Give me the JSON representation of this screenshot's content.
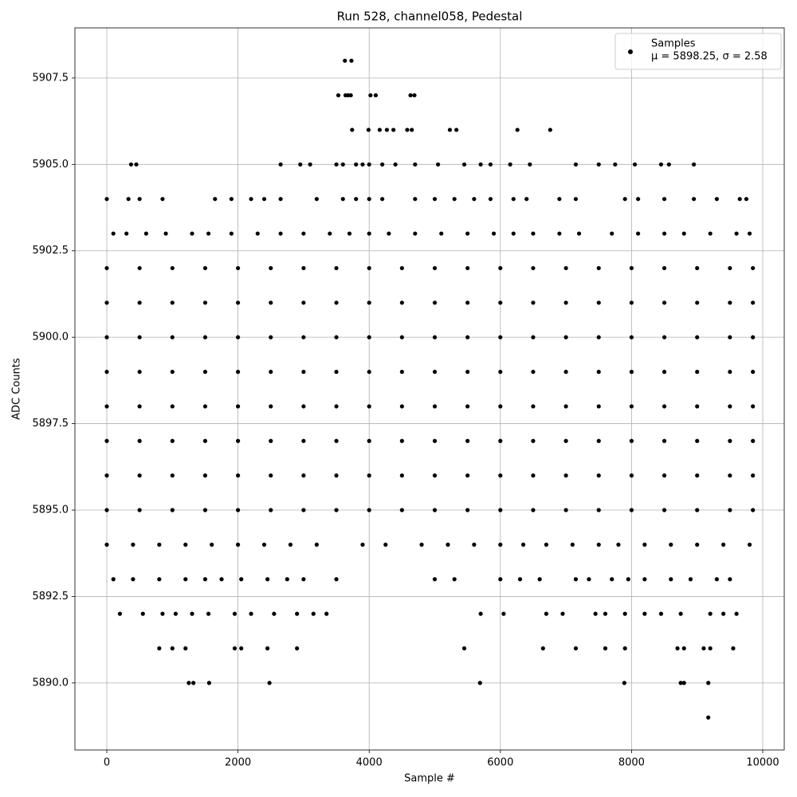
{
  "chart_data": {
    "type": "scatter",
    "title": "Run 528, channel058, Pedestal",
    "x_label": "Sample #",
    "y_label": "ADC Counts",
    "annotation": "μ = 5898.25, σ = 2.58",
    "grid": true,
    "legend": "upper right",
    "xlim": [
      -486,
      10328
    ],
    "ylim": [
      5888.06,
      5908.95
    ],
    "xticks": [
      0,
      2000,
      4000,
      6000,
      8000,
      10000
    ],
    "yticks": [
      {
        "value": 5890,
        "label": "5890.0"
      },
      {
        "value": 5892.5,
        "label": "5892.5"
      },
      {
        "value": 5895,
        "label": "5895.0"
      },
      {
        "value": 5897.5,
        "label": "5897.5"
      },
      {
        "value": 5900,
        "label": "5900.0"
      },
      {
        "value": 5902.5,
        "label": "5902.5"
      },
      {
        "value": 5905,
        "label": "5905.0"
      },
      {
        "value": 5907.5,
        "label": "5907.5"
      }
    ],
    "x": [
      3630,
      3730,
      3530,
      3640,
      3680,
      3720,
      4020,
      4100,
      4630,
      4690,
      3740,
      3990,
      4160,
      4270,
      4370,
      4580,
      4650,
      5230,
      5330,
      6260,
      6760,
      370,
      450,
      2650,
      2950,
      3100,
      3500,
      3600,
      3800,
      3900,
      4000,
      4200,
      4400,
      4700,
      5050,
      5450,
      5700,
      5850,
      6150,
      6450,
      7150,
      7500,
      7750,
      8050,
      8450,
      8570,
      8950,
      0,
      330,
      500,
      850,
      1650,
      1900,
      2200,
      2400,
      2650,
      3200,
      3600,
      3800,
      4000,
      4200,
      4700,
      5000,
      5300,
      5600,
      5850,
      6200,
      6400,
      6900,
      7150,
      7900,
      8100,
      8500,
      8950,
      9300,
      9650,
      9750,
      100,
      300,
      600,
      900,
      1300,
      1550,
      1900,
      2300,
      2650,
      3000,
      3400,
      3700,
      4000,
      4300,
      4700,
      5100,
      5500,
      5900,
      6200,
      6500,
      6900,
      7200,
      7700,
      8100,
      8500,
      8800,
      9200,
      9600,
      9800,
      0,
      500,
      1000,
      1500,
      2000,
      2500,
      3000,
      3500,
      4000,
      4500,
      5000,
      5500,
      6000,
      6500,
      7000,
      7500,
      8000,
      8500,
      9000,
      9500,
      9850,
      0,
      500,
      1000,
      1500,
      2000,
      2500,
      3000,
      3500,
      4000,
      4500,
      5000,
      5500,
      6000,
      6500,
      7000,
      7500,
      8000,
      8500,
      9000,
      9500,
      9850,
      0,
      500,
      1000,
      1500,
      2000,
      2500,
      3000,
      3500,
      4000,
      4500,
      5000,
      5500,
      6000,
      6500,
      7000,
      7500,
      8000,
      8500,
      9000,
      9500,
      9850,
      0,
      500,
      1000,
      1500,
      2000,
      2500,
      3000,
      3500,
      4000,
      4500,
      5000,
      5500,
      6000,
      6500,
      7000,
      7500,
      8000,
      8500,
      9000,
      9500,
      9850,
      0,
      500,
      1000,
      1500,
      2000,
      2500,
      3000,
      3500,
      4000,
      4500,
      5000,
      5500,
      6000,
      6500,
      7000,
      7500,
      8000,
      8500,
      9000,
      9500,
      9850,
      0,
      500,
      1000,
      1500,
      2000,
      2500,
      3000,
      3500,
      4000,
      4500,
      5000,
      5500,
      6000,
      6500,
      7000,
      7500,
      8000,
      8500,
      9000,
      9500,
      9850,
      0,
      500,
      1000,
      1500,
      2000,
      2500,
      3000,
      3500,
      4000,
      4500,
      5000,
      5500,
      6000,
      6500,
      7000,
      7500,
      8000,
      8500,
      9000,
      9500,
      9850,
      0,
      500,
      1000,
      1500,
      2000,
      2500,
      3000,
      3500,
      4000,
      4500,
      5000,
      5500,
      6000,
      6500,
      7000,
      7500,
      8000,
      8500,
      9000,
      9500,
      9850,
      0,
      400,
      800,
      1200,
      1600,
      2000,
      2400,
      2800,
      3200,
      3900,
      4250,
      4800,
      5200,
      5600,
      6000,
      6350,
      6700,
      7100,
      7500,
      7800,
      8200,
      8600,
      9000,
      9400,
      9800,
      100,
      400,
      800,
      1200,
      1500,
      1750,
      2050,
      2450,
      2750,
      3000,
      3500,
      5000,
      5300,
      6000,
      6300,
      6600,
      7150,
      7350,
      7700,
      7950,
      8200,
      8600,
      8900,
      9300,
      9500,
      200,
      550,
      850,
      1050,
      1300,
      1550,
      1950,
      2200,
      2550,
      2900,
      3150,
      3350,
      5700,
      6050,
      6700,
      6950,
      7450,
      7600,
      7900,
      8200,
      8450,
      8750,
      9200,
      9400,
      9600,
      800,
      1000,
      1200,
      1950,
      2050,
      2450,
      2900,
      5450,
      6650,
      7150,
      7600,
      7900,
      8700,
      8800,
      9100,
      9200,
      9550,
      1250,
      1320,
      1560,
      2480,
      5690,
      7890,
      8750,
      8800,
      9170,
      9170
    ],
    "series": [
      {
        "name": "Samples",
        "color": "#000000",
        "values": [
          5908,
          5908,
          5907,
          5907,
          5907,
          5907,
          5907,
          5907,
          5907,
          5907,
          5906,
          5906,
          5906,
          5906,
          5906,
          5906,
          5906,
          5906,
          5906,
          5906,
          5906,
          5905,
          5905,
          5905,
          5905,
          5905,
          5905,
          5905,
          5905,
          5905,
          5905,
          5905,
          5905,
          5905,
          5905,
          5905,
          5905,
          5905,
          5905,
          5905,
          5905,
          5905,
          5905,
          5905,
          5905,
          5905,
          5905,
          5904,
          5904,
          5904,
          5904,
          5904,
          5904,
          5904,
          5904,
          5904,
          5904,
          5904,
          5904,
          5904,
          5904,
          5904,
          5904,
          5904,
          5904,
          5904,
          5904,
          5904,
          5904,
          5904,
          5904,
          5904,
          5904,
          5904,
          5904,
          5904,
          5904,
          5903,
          5903,
          5903,
          5903,
          5903,
          5903,
          5903,
          5903,
          5903,
          5903,
          5903,
          5903,
          5903,
          5903,
          5903,
          5903,
          5903,
          5903,
          5903,
          5903,
          5903,
          5903,
          5903,
          5903,
          5903,
          5903,
          5903,
          5903,
          5903,
          5902,
          5902,
          5902,
          5902,
          5902,
          5902,
          5902,
          5902,
          5902,
          5902,
          5902,
          5902,
          5902,
          5902,
          5902,
          5902,
          5902,
          5902,
          5902,
          5902,
          5902,
          5901,
          5901,
          5901,
          5901,
          5901,
          5901,
          5901,
          5901,
          5901,
          5901,
          5901,
          5901,
          5901,
          5901,
          5901,
          5901,
          5901,
          5901,
          5901,
          5901,
          5901,
          5900,
          5900,
          5900,
          5900,
          5900,
          5900,
          5900,
          5900,
          5900,
          5900,
          5900,
          5900,
          5900,
          5900,
          5900,
          5900,
          5900,
          5900,
          5900,
          5900,
          5900,
          5899,
          5899,
          5899,
          5899,
          5899,
          5899,
          5899,
          5899,
          5899,
          5899,
          5899,
          5899,
          5899,
          5899,
          5899,
          5899,
          5899,
          5899,
          5899,
          5899,
          5899,
          5898,
          5898,
          5898,
          5898,
          5898,
          5898,
          5898,
          5898,
          5898,
          5898,
          5898,
          5898,
          5898,
          5898,
          5898,
          5898,
          5898,
          5898,
          5898,
          5898,
          5898,
          5897,
          5897,
          5897,
          5897,
          5897,
          5897,
          5897,
          5897,
          5897,
          5897,
          5897,
          5897,
          5897,
          5897,
          5897,
          5897,
          5897,
          5897,
          5897,
          5897,
          5897,
          5896,
          5896,
          5896,
          5896,
          5896,
          5896,
          5896,
          5896,
          5896,
          5896,
          5896,
          5896,
          5896,
          5896,
          5896,
          5896,
          5896,
          5896,
          5896,
          5896,
          5896,
          5895,
          5895,
          5895,
          5895,
          5895,
          5895,
          5895,
          5895,
          5895,
          5895,
          5895,
          5895,
          5895,
          5895,
          5895,
          5895,
          5895,
          5895,
          5895,
          5895,
          5895,
          5894,
          5894,
          5894,
          5894,
          5894,
          5894,
          5894,
          5894,
          5894,
          5894,
          5894,
          5894,
          5894,
          5894,
          5894,
          5894,
          5894,
          5894,
          5894,
          5894,
          5894,
          5894,
          5894,
          5894,
          5894,
          5893,
          5893,
          5893,
          5893,
          5893,
          5893,
          5893,
          5893,
          5893,
          5893,
          5893,
          5893,
          5893,
          5893,
          5893,
          5893,
          5893,
          5893,
          5893,
          5893,
          5893,
          5893,
          5893,
          5893,
          5893,
          5892,
          5892,
          5892,
          5892,
          5892,
          5892,
          5892,
          5892,
          5892,
          5892,
          5892,
          5892,
          5892,
          5892,
          5892,
          5892,
          5892,
          5892,
          5892,
          5892,
          5892,
          5892,
          5892,
          5892,
          5892,
          5891,
          5891,
          5891,
          5891,
          5891,
          5891,
          5891,
          5891,
          5891,
          5891,
          5891,
          5891,
          5891,
          5891,
          5891,
          5891,
          5891,
          5890,
          5890,
          5890,
          5890,
          5890,
          5890,
          5890,
          5890,
          5890,
          5889
        ]
      }
    ]
  }
}
